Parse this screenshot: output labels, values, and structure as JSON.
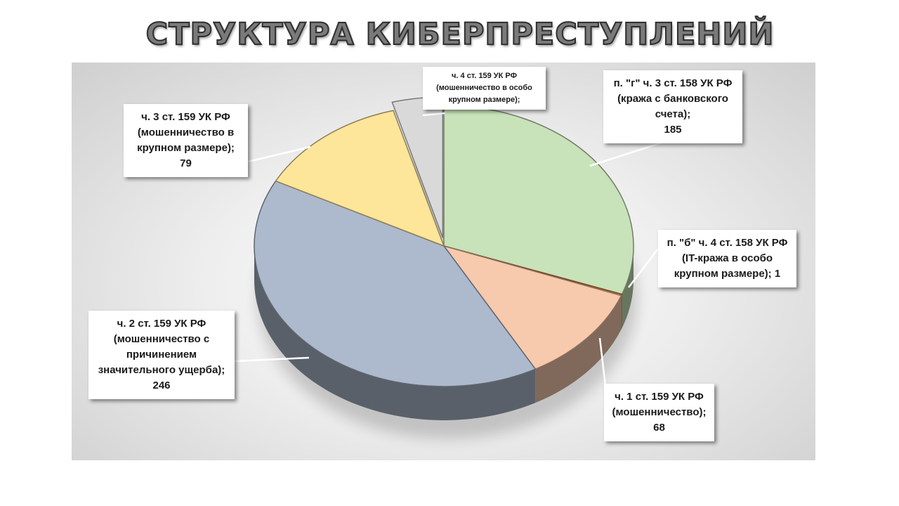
{
  "title": "СТРУКТУРА КИБЕРПРЕСТУПЛЕНИЙ",
  "chart_data": {
    "type": "pie",
    "title": "СТРУКТУРА КИБЕРПРЕСТУПЛЕНИЙ",
    "start_angle_deg": 0,
    "direction": "clockwise",
    "slices": [
      {
        "label": "п. \"г\" ч. 3 ст. 158 УК РФ (кража с банковского счета);",
        "value": 185,
        "value_text": "185",
        "color": "#c8e2b9"
      },
      {
        "label": "п. \"б\" ч. 4 ст. 158 УК РФ (IT-кража в особо крупном размере);",
        "value": 1,
        "value_text": "1",
        "color": "#e07a2c"
      },
      {
        "label": "ч. 1 ст. 159 УК РФ (мошенничество);",
        "value": 68,
        "value_text": "68",
        "color": "#f7c9ad"
      },
      {
        "label": "ч. 2 ст. 159 УК РФ (мошенничество с причинением значительного ущерба);",
        "value": 246,
        "value_text": "246",
        "color": "#adb9cc"
      },
      {
        "label": "ч. 3 ст. 159 УК РФ (мошенничество в крупном размере);",
        "value": 79,
        "value_text": "79",
        "color": "#fde59a"
      },
      {
        "label": "ч. 4 ст. 159 УК РФ (мошенничество в особо крупном размере);",
        "value": 26,
        "value_text": "",
        "color": "#d9d9d9"
      }
    ]
  },
  "labels": {
    "s0": {
      "lines": [
        "п. \"г\" ч. 3 ст. 158 УК РФ",
        "(кража с банковского",
        "счета);",
        "185"
      ]
    },
    "s1": {
      "lines": [
        "п. \"б\" ч. 4 ст. 158 УК РФ",
        "(IT-кража в особо",
        "крупном размере); 1"
      ]
    },
    "s2": {
      "lines": [
        "ч. 1 ст. 159 УК РФ",
        "(мошенничество);",
        "68"
      ]
    },
    "s3": {
      "lines": [
        "ч. 2 ст. 159 УК РФ",
        "(мошенничество с",
        "причинением",
        "значительного ущерба);",
        "246"
      ]
    },
    "s4": {
      "lines": [
        "ч. 3 ст. 159 УК РФ",
        "(мошенничество в",
        "крупном размере);",
        "79"
      ]
    },
    "s5": {
      "lines": [
        "ч. 4 ст. 159 УК РФ",
        "(мошенничество в особо",
        "крупном размере);"
      ]
    }
  }
}
